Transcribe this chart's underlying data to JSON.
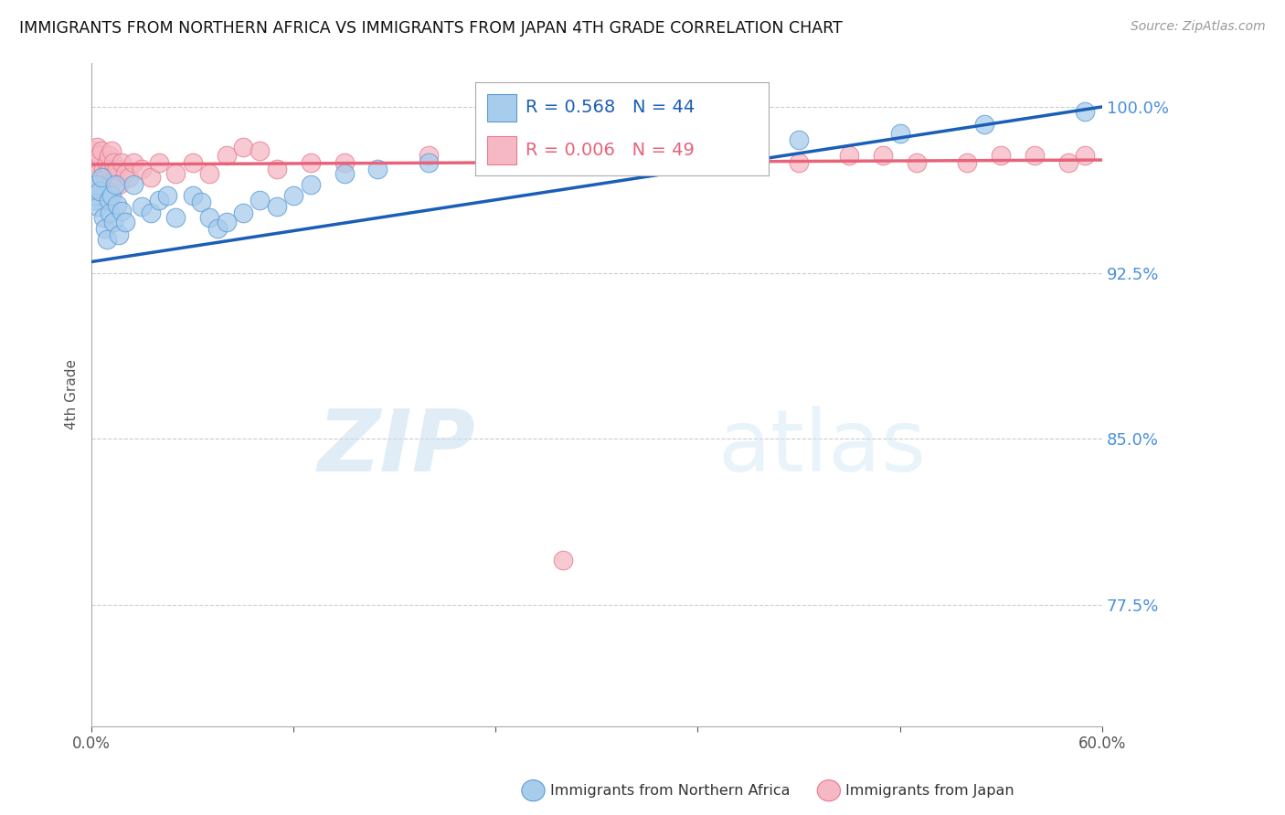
{
  "title": "IMMIGRANTS FROM NORTHERN AFRICA VS IMMIGRANTS FROM JAPAN 4TH GRADE CORRELATION CHART",
  "source": "Source: ZipAtlas.com",
  "ylabel": "4th Grade",
  "xlim": [
    0.0,
    0.6
  ],
  "ylim": [
    0.72,
    1.02
  ],
  "yticks": [
    0.775,
    0.85,
    0.925,
    1.0
  ],
  "ytick_labels": [
    "77.5%",
    "85.0%",
    "92.5%",
    "100.0%"
  ],
  "xticks": [
    0.0,
    0.12,
    0.24,
    0.36,
    0.48,
    0.6
  ],
  "xtick_labels": [
    "0.0%",
    "",
    "",
    "",
    "",
    "60.0%"
  ],
  "blue_R": 0.568,
  "blue_N": 44,
  "pink_R": 0.006,
  "pink_N": 49,
  "blue_color": "#a8ccec",
  "pink_color": "#f5b8c4",
  "blue_edge_color": "#5b9bd5",
  "pink_edge_color": "#e87a8e",
  "blue_line_color": "#1a5eb8",
  "pink_line_color": "#e8637a",
  "legend_label_blue": "Immigrants from Northern Africa",
  "legend_label_pink": "Immigrants from Japan",
  "blue_scatter_x": [
    0.001,
    0.002,
    0.003,
    0.004,
    0.005,
    0.006,
    0.007,
    0.008,
    0.009,
    0.01,
    0.011,
    0.012,
    0.013,
    0.014,
    0.015,
    0.016,
    0.018,
    0.02,
    0.025,
    0.03,
    0.035,
    0.04,
    0.045,
    0.05,
    0.06,
    0.065,
    0.07,
    0.075,
    0.08,
    0.09,
    0.1,
    0.11,
    0.12,
    0.13,
    0.15,
    0.17,
    0.2,
    0.25,
    0.3,
    0.35,
    0.42,
    0.48,
    0.53,
    0.59
  ],
  "blue_scatter_y": [
    0.958,
    0.96,
    0.965,
    0.955,
    0.962,
    0.968,
    0.95,
    0.945,
    0.94,
    0.958,
    0.952,
    0.96,
    0.948,
    0.965,
    0.956,
    0.942,
    0.953,
    0.948,
    0.965,
    0.955,
    0.952,
    0.958,
    0.96,
    0.95,
    0.96,
    0.957,
    0.95,
    0.945,
    0.948,
    0.952,
    0.958,
    0.955,
    0.96,
    0.965,
    0.97,
    0.972,
    0.975,
    0.978,
    0.98,
    0.982,
    0.985,
    0.988,
    0.992,
    0.998
  ],
  "pink_scatter_x": [
    0.001,
    0.002,
    0.003,
    0.004,
    0.005,
    0.006,
    0.007,
    0.008,
    0.009,
    0.01,
    0.011,
    0.012,
    0.013,
    0.014,
    0.015,
    0.016,
    0.018,
    0.02,
    0.022,
    0.025,
    0.03,
    0.035,
    0.04,
    0.05,
    0.06,
    0.07,
    0.08,
    0.09,
    0.1,
    0.15,
    0.2,
    0.27,
    0.32,
    0.37,
    0.42,
    0.47,
    0.52,
    0.56,
    0.59,
    0.11,
    0.13,
    0.25,
    0.3,
    0.35,
    0.45,
    0.49,
    0.54,
    0.58,
    0.28
  ],
  "pink_scatter_y": [
    0.98,
    0.975,
    0.982,
    0.97,
    0.978,
    0.98,
    0.972,
    0.968,
    0.975,
    0.978,
    0.972,
    0.98,
    0.975,
    0.968,
    0.972,
    0.965,
    0.975,
    0.97,
    0.968,
    0.975,
    0.972,
    0.968,
    0.975,
    0.97,
    0.975,
    0.97,
    0.978,
    0.982,
    0.98,
    0.975,
    0.978,
    0.978,
    0.975,
    0.978,
    0.975,
    0.978,
    0.975,
    0.978,
    0.978,
    0.972,
    0.975,
    0.978,
    0.975,
    0.978,
    0.978,
    0.975,
    0.978,
    0.975,
    0.795
  ],
  "blue_trend_x": [
    0.0,
    0.6
  ],
  "blue_trend_y": [
    0.93,
    1.0
  ],
  "pink_trend_x": [
    0.0,
    0.6
  ],
  "pink_trend_y": [
    0.974,
    0.976
  ],
  "watermark_zip": "ZIP",
  "watermark_atlas": "atlas",
  "bg_color": "#ffffff",
  "grid_color": "#cccccc"
}
